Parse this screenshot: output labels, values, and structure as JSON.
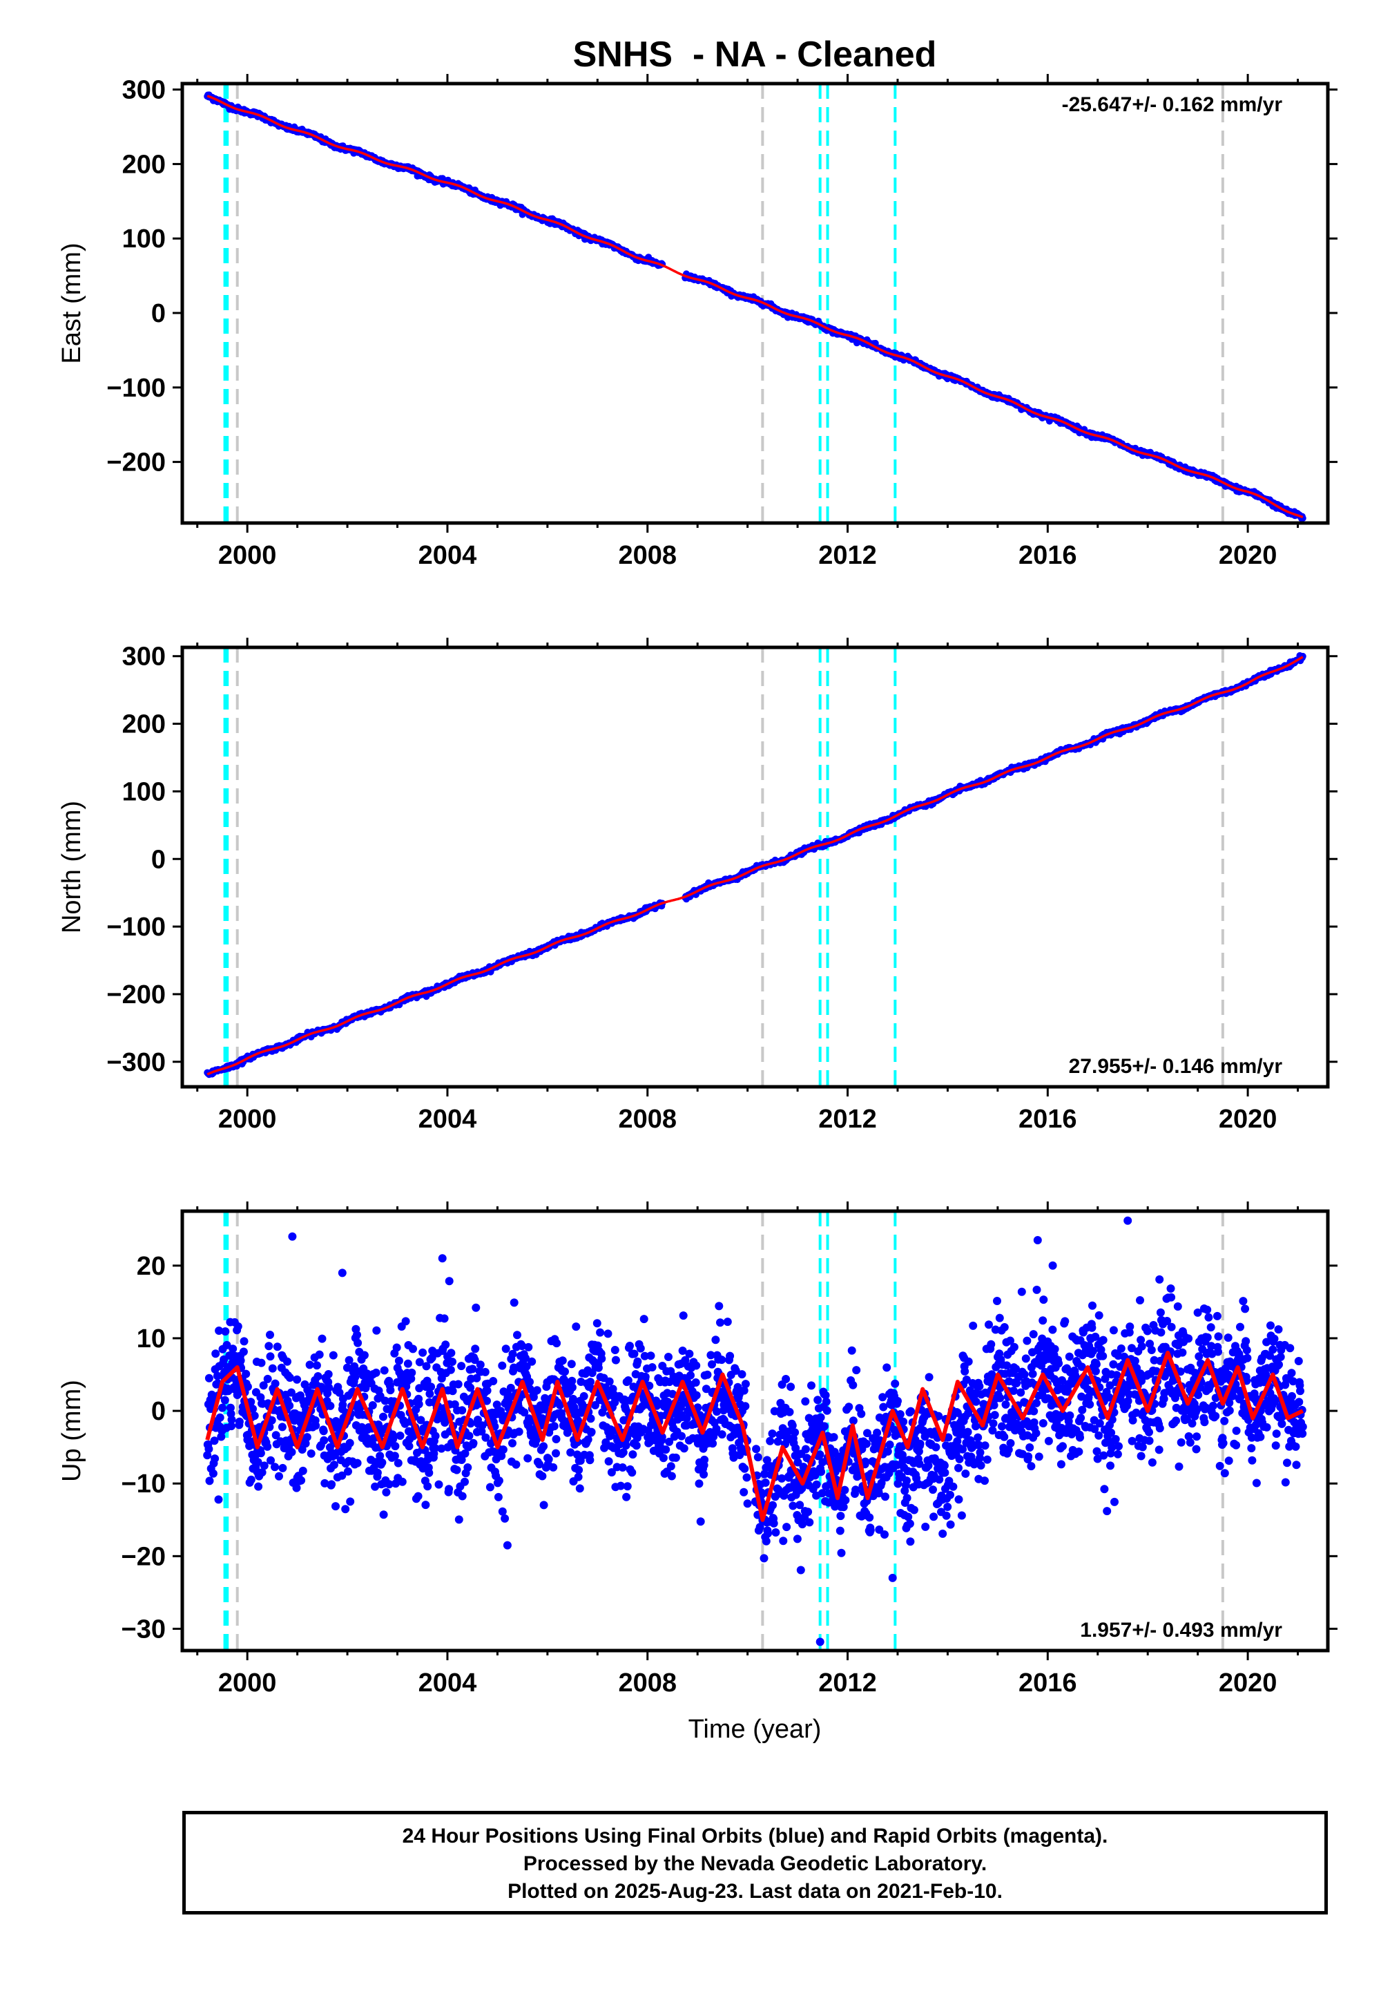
{
  "title": "SNHS  - NA - Cleaned",
  "xlabel": "Time (year)",
  "footer": {
    "line1": "24 Hour Positions Using Final Orbits (blue) and Rapid Orbits (magenta).",
    "line2": "Processed by the Nevada Geodetic Laboratory.",
    "line3": "Plotted on 2025-Aug-23. Last data on 2021-Feb-10."
  },
  "colors": {
    "data": "#0000ff",
    "model": "#ff0000",
    "equipment_change": "#00ffff",
    "other_event": "#c8c8c8"
  },
  "chart_data": [
    {
      "type": "scatter",
      "component": "east",
      "ylabel": "East (mm)",
      "rate_label": "-25.647+/- 0.162 mm/yr",
      "rate_position": "top-right",
      "xlim": [
        1998.7,
        2021.6
      ],
      "ylim": [
        -282,
        308
      ],
      "x_ticks": [
        2000,
        2004,
        2008,
        2012,
        2016,
        2020
      ],
      "y_ticks": [
        300,
        200,
        100,
        0,
        -100,
        -200
      ],
      "series": [
        {
          "x": [
            1999.2,
            2000.0,
            2002.0,
            2004.0,
            2006.0,
            2008.0,
            2010.0,
            2012.0,
            2014.0,
            2016.0,
            2018.0,
            2020.0,
            2021.1
          ],
          "values": [
            290,
            270,
            220,
            175,
            125,
            70,
            20,
            -30,
            -85,
            -140,
            -190,
            -240,
            -275
          ]
        }
      ],
      "vertical_lines_cyan": [
        1999.55,
        1999.6,
        2011.45,
        2011.6,
        2012.95
      ],
      "vertical_lines_gray": [
        1999.8,
        2010.3,
        2019.5
      ]
    },
    {
      "type": "scatter",
      "component": "north",
      "ylabel": "North (mm)",
      "rate_label": "27.955+/- 0.146 mm/yr",
      "rate_position": "bottom-right",
      "xlim": [
        1998.7,
        2021.6
      ],
      "ylim": [
        -337,
        313
      ],
      "x_ticks": [
        2000,
        2004,
        2008,
        2012,
        2016,
        2020
      ],
      "y_ticks": [
        300,
        200,
        100,
        0,
        -100,
        -200,
        -300
      ],
      "series": [
        {
          "x": [
            1999.2,
            2000.0,
            2002.0,
            2004.0,
            2006.0,
            2008.0,
            2010.0,
            2012.0,
            2014.0,
            2016.0,
            2018.0,
            2020.0,
            2021.1
          ],
          "values": [
            -320,
            -295,
            -240,
            -185,
            -130,
            -75,
            -20,
            35,
            95,
            150,
            205,
            260,
            298
          ]
        }
      ],
      "vertical_lines_cyan": [
        1999.55,
        1999.6,
        2011.45,
        2011.6,
        2012.95
      ],
      "vertical_lines_gray": [
        1999.8,
        2010.3,
        2019.5
      ]
    },
    {
      "type": "scatter",
      "component": "up",
      "ylabel": "Up (mm)",
      "rate_label": "1.957+/- 0.493 mm/yr",
      "rate_position": "bottom-right",
      "xlim": [
        1998.7,
        2021.6
      ],
      "ylim": [
        -33,
        27.5
      ],
      "x_ticks": [
        2000,
        2004,
        2008,
        2012,
        2016,
        2020
      ],
      "y_ticks": [
        20,
        10,
        0,
        -10,
        -20,
        -30
      ],
      "seasonal_model": {
        "x": [
          1999.2,
          1999.5,
          1999.8,
          2000.2,
          2000.6,
          2001.0,
          2001.4,
          2001.8,
          2002.2,
          2002.7,
          2003.1,
          2003.5,
          2003.9,
          2004.2,
          2004.6,
          2005.0,
          2005.5,
          2005.9,
          2006.2,
          2006.6,
          2007.0,
          2007.5,
          2007.9,
          2008.3,
          2008.7,
          2009.1,
          2009.5,
          2009.9,
          2010.3,
          2010.7,
          2011.1,
          2011.5,
          2011.8,
          2012.1,
          2012.4,
          2012.9,
          2013.2,
          2013.5,
          2013.9,
          2014.2,
          2014.7,
          2015.0,
          2015.5,
          2015.9,
          2016.3,
          2016.8,
          2017.2,
          2017.6,
          2018.0,
          2018.4,
          2018.8,
          2019.2,
          2019.5,
          2019.8,
          2020.1,
          2020.5,
          2020.8,
          2021.1
        ],
        "values": [
          -4,
          4,
          6,
          -5,
          3,
          -5,
          3,
          -5,
          3,
          -5,
          3,
          -5,
          3,
          -5,
          3,
          -5,
          4,
          -4,
          4,
          -4,
          4,
          -4,
          4,
          -3,
          4,
          -3,
          5,
          -2,
          -15,
          -5,
          -10,
          -3,
          -12,
          -2,
          -12,
          0,
          -5,
          3,
          -4,
          4,
          -2,
          5,
          -1,
          5,
          0,
          6,
          -1,
          7,
          0,
          8,
          1,
          7,
          1,
          6,
          -1,
          5,
          -1,
          0
        ]
      },
      "scatter_notes": "dense daily scatter roughly ±10 mm around the seasonal model; extremes ~26 mm (2017.6) and ~-32 mm (2011.5)",
      "vertical_lines_cyan": [
        1999.55,
        1999.6,
        2011.45,
        2011.6,
        2012.95
      ],
      "vertical_lines_gray": [
        1999.8,
        2010.3,
        2019.5
      ]
    }
  ]
}
